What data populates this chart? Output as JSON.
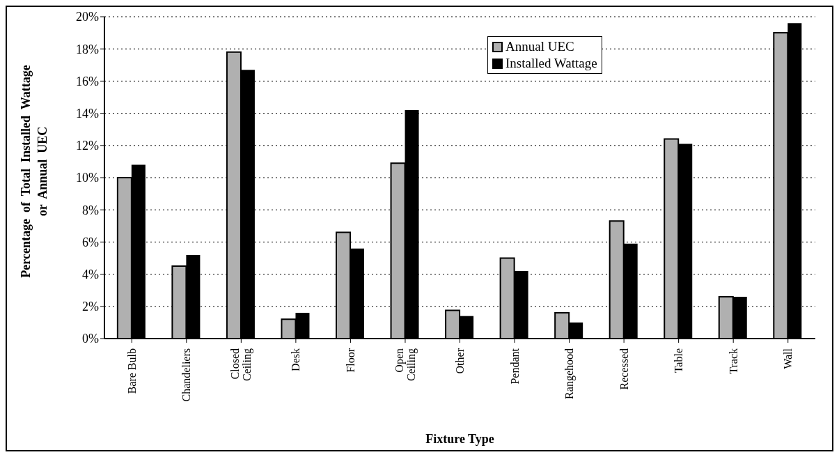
{
  "chart_data": {
    "type": "bar",
    "xlabel": "Fixture  Type",
    "ylabel": "Percentage  of  Total  Installed  Wattage\nor  Annual  UEC",
    "categories": [
      "Bare Bulb",
      "Chandeliers",
      "Closed\nCeiling",
      "Desk",
      "Floor",
      "Open\nCeiling",
      "Other",
      "Pendant",
      "Rangehood",
      "Recessed",
      "Table",
      "Track",
      "Wall"
    ],
    "series": [
      {
        "name": "Annual UEC",
        "color": "#b0b0b0",
        "values": [
          10.0,
          4.5,
          17.8,
          1.2,
          6.6,
          10.9,
          1.75,
          5.0,
          1.6,
          7.3,
          12.4,
          2.6,
          19.0
        ]
      },
      {
        "name": "Installed Wattage",
        "color": "#000000",
        "values": [
          10.8,
          5.2,
          16.7,
          1.6,
          5.6,
          14.2,
          1.4,
          4.2,
          1.0,
          5.9,
          12.1,
          2.6,
          19.6
        ]
      }
    ],
    "ylim": [
      0,
      20
    ],
    "yticks": [
      {
        "value": 0,
        "label": "0%"
      },
      {
        "value": 2,
        "label": "2%"
      },
      {
        "value": 4,
        "label": "4%"
      },
      {
        "value": 6,
        "label": "6%"
      },
      {
        "value": 8,
        "label": "8%"
      },
      {
        "value": 10,
        "label": "10%"
      },
      {
        "value": 12,
        "label": "12%"
      },
      {
        "value": 14,
        "label": "14%"
      },
      {
        "value": 16,
        "label": "16%"
      },
      {
        "value": 18,
        "label": "18%"
      },
      {
        "value": 20,
        "label": "20%"
      }
    ],
    "grid": "y",
    "legend": "top right"
  }
}
